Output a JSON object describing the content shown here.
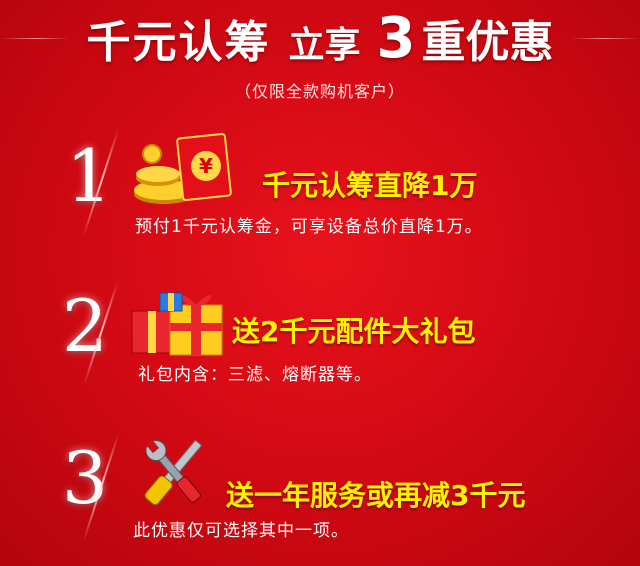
{
  "title": {
    "part1": "千元认筹",
    "part2": "立享",
    "number": "3",
    "part3": "重优惠"
  },
  "subtitle": "（仅限全款购机客户）",
  "items": [
    {
      "number": "1",
      "heading": "千元认筹直降1万",
      "description": "预付1千元认筹金，可享设备总价直降1万。",
      "icon": "red-envelope-coins-icon"
    },
    {
      "number": "2",
      "heading": "送2千元配件大礼包",
      "description": "礼包内含：三滤、熔断器等。",
      "icon": "gift-boxes-icon"
    },
    {
      "number": "3",
      "heading": "送一年服务或再减3千元",
      "description": "此优惠仅可选择其中一项。",
      "icon": "wrench-screwdriver-icon"
    }
  ],
  "colors": {
    "background": "#d40a14",
    "heading": "#fff200",
    "text": "#ffffff"
  },
  "icon_labels": {
    "red_envelope_char": "¥"
  }
}
